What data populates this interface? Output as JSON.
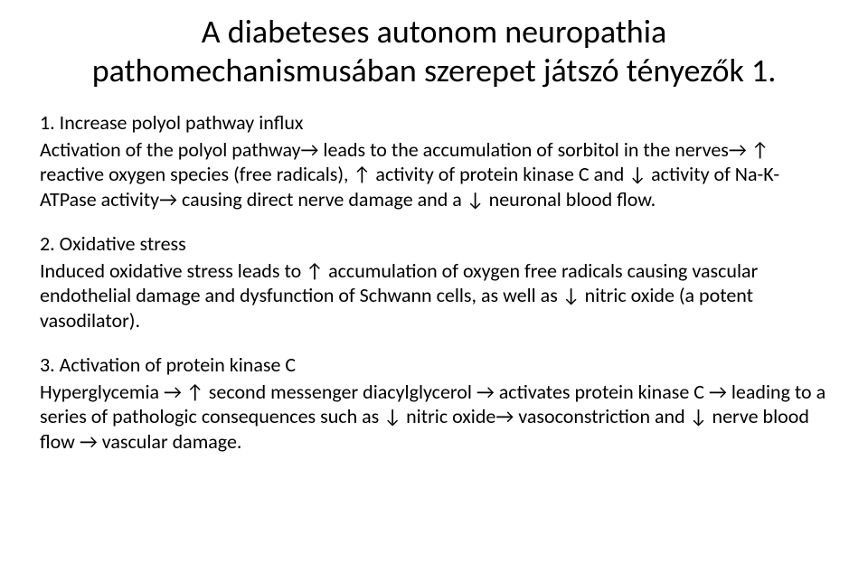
{
  "title": "A diabeteses autonom neuropathia pathomechanismusában szerepet játszó tényezők 1.",
  "sections": [
    {
      "heading": "1. Increase polyol pathway influx",
      "body": "Activation of the polyol pathway→ leads to the accumulation of sorbitol in the nerves→ ↑ reactive oxygen species (free radicals), ↑ activity of protein kinase C and ↓ activity of Na-K-ATPase activity→ causing direct nerve damage and a ↓ neuronal blood flow."
    },
    {
      "heading": "2. Oxidative stress",
      "body": "Induced oxidative stress leads to ↑ accumulation of oxygen free radicals causing vascular endothelial damage and dysfunction of  Schwann cells, as well as ↓ nitric oxide (a potent vasodilator)."
    },
    {
      "heading": "3. Activation of protein kinase C",
      "body": "Hyperglycemia → ↑ second messenger diacylglycerol → activates protein kinase C → leading to a series of pathologic consequences such as ↓ nitric oxide→ vasoconstriction and ↓ nerve blood flow → vascular damage."
    }
  ],
  "colors": {
    "background": "#ffffff",
    "text": "#000000"
  },
  "typography": {
    "title_fontsize": 36,
    "body_fontsize": 22,
    "font_family": "Calibri"
  }
}
